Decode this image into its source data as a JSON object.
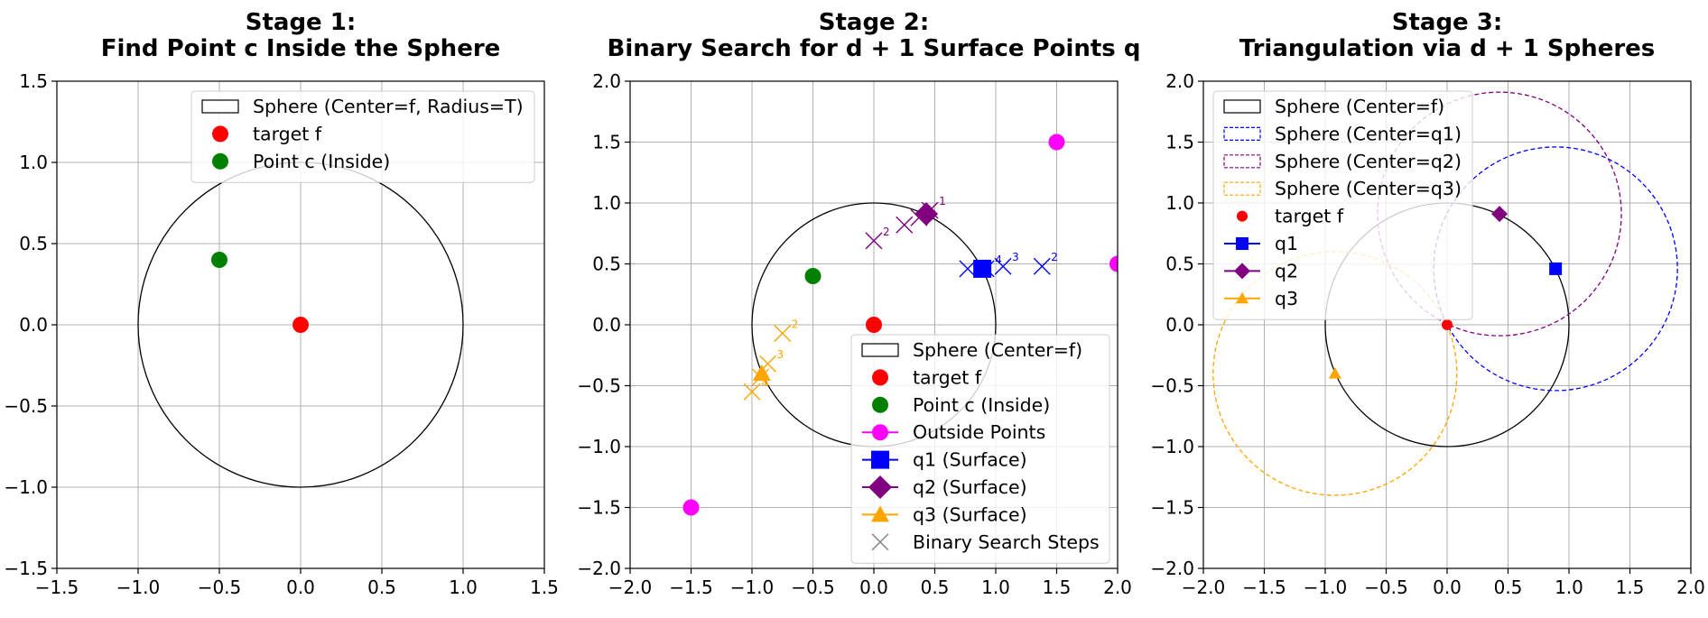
{
  "chart_data": [
    {
      "type": "scatter",
      "title": "Stage 1:\nFind Point c Inside the Sphere",
      "xlim": [
        -1.5,
        1.5
      ],
      "ylim": [
        -1.5,
        1.5
      ],
      "xticks": [
        -1.5,
        -1.0,
        -0.5,
        0.0,
        0.5,
        1.0,
        1.5
      ],
      "yticks": [
        -1.5,
        -1.0,
        -0.5,
        0.0,
        0.5,
        1.0,
        1.5
      ],
      "xtick_labels": [
        "−1.5",
        "−1.0",
        "−0.5",
        "0.0",
        "0.5",
        "1.0",
        "1.5"
      ],
      "ytick_labels": [
        "−1.5",
        "−1.0",
        "−0.5",
        "0.0",
        "0.5",
        "1.0",
        "1.5"
      ],
      "grid": true,
      "legend_position": "upper right",
      "circles": [
        {
          "name": "Sphere (Center=f, Radius=T)",
          "cx": 0,
          "cy": 0,
          "r": 1,
          "color": "#000000",
          "dashed": false
        }
      ],
      "points": [
        {
          "name": "target f",
          "x": 0,
          "y": 0,
          "color": "#ff0000",
          "marker": "circle"
        },
        {
          "name": "Point c (Inside)",
          "x": -0.5,
          "y": 0.4,
          "color": "#008000",
          "marker": "circle"
        }
      ],
      "legend": [
        {
          "label": "Sphere (Center=f, Radius=T)",
          "kind": "patch",
          "color": "#000000"
        },
        {
          "label": "target f",
          "kind": "circle",
          "color": "#ff0000"
        },
        {
          "label": "Point c (Inside)",
          "kind": "circle",
          "color": "#008000"
        }
      ]
    },
    {
      "type": "scatter",
      "title": "Stage 2:\nBinary Search for d + 1 Surface Points q",
      "xlim": [
        -2.0,
        2.0
      ],
      "ylim": [
        -2.0,
        2.0
      ],
      "xticks": [
        -2.0,
        -1.5,
        -1.0,
        -0.5,
        0.0,
        0.5,
        1.0,
        1.5,
        2.0
      ],
      "yticks": [
        -2.0,
        -1.5,
        -1.0,
        -0.5,
        0.0,
        0.5,
        1.0,
        1.5,
        2.0
      ],
      "xtick_labels": [
        "−2.0",
        "−1.5",
        "−1.0",
        "−0.5",
        "0.0",
        "0.5",
        "1.0",
        "1.5",
        "2.0"
      ],
      "ytick_labels": [
        "−2.0",
        "−1.5",
        "−1.0",
        "−0.5",
        "0.0",
        "0.5",
        "1.0",
        "1.5",
        "2.0"
      ],
      "grid": true,
      "legend_position": "lower right",
      "circles": [
        {
          "name": "Sphere (Center=f)",
          "cx": 0,
          "cy": 0,
          "r": 1,
          "color": "#000000",
          "dashed": false
        }
      ],
      "points": [
        {
          "name": "target f",
          "x": 0,
          "y": 0,
          "color": "#ff0000",
          "marker": "circle"
        },
        {
          "name": "Point c (Inside)",
          "x": -0.5,
          "y": 0.4,
          "color": "#008000",
          "marker": "circle"
        },
        {
          "name": "Outside Points",
          "x": 1.5,
          "y": 1.5,
          "color": "#ff00ff",
          "marker": "circle"
        },
        {
          "name": "Outside Points",
          "x": 2.0,
          "y": 0.5,
          "color": "#ff00ff",
          "marker": "circle"
        },
        {
          "name": "Outside Points",
          "x": -1.5,
          "y": -1.5,
          "color": "#ff00ff",
          "marker": "circle"
        },
        {
          "name": "q1 (Surface)",
          "x": 0.89,
          "y": 0.46,
          "color": "#0000ff",
          "marker": "square"
        },
        {
          "name": "q2 (Surface)",
          "x": 0.43,
          "y": 0.91,
          "color": "#800080",
          "marker": "diamond"
        },
        {
          "name": "q3 (Surface)",
          "x": -0.92,
          "y": -0.4,
          "color": "#ffa500",
          "marker": "triangle"
        }
      ],
      "steps": [
        {
          "x": 1.38,
          "y": 0.48,
          "label": "2",
          "color": "#0000ff"
        },
        {
          "x": 1.06,
          "y": 0.48,
          "label": "3",
          "color": "#0000ff"
        },
        {
          "x": 0.77,
          "y": 0.46,
          "label": "",
          "color": "#0000ff"
        },
        {
          "x": 0.92,
          "y": 0.46,
          "label": "4",
          "color": "#0000ff"
        },
        {
          "x": 0.46,
          "y": 0.94,
          "label": "1",
          "color": "#800080"
        },
        {
          "x": 0.0,
          "y": 0.69,
          "label": "2",
          "color": "#800080"
        },
        {
          "x": 0.25,
          "y": 0.82,
          "label": "",
          "color": "#800080"
        },
        {
          "x": 0.37,
          "y": 0.88,
          "label": "",
          "color": "#800080"
        },
        {
          "x": -0.75,
          "y": -0.07,
          "label": "2",
          "color": "#ffa500"
        },
        {
          "x": -0.87,
          "y": -0.32,
          "label": "3",
          "color": "#ffa500"
        },
        {
          "x": -1.0,
          "y": -0.55,
          "label": "4",
          "color": "#ffa500"
        },
        {
          "x": -0.93,
          "y": -0.43,
          "label": "",
          "color": "#ffa500"
        }
      ],
      "legend": [
        {
          "label": "Sphere (Center=f)",
          "kind": "patch",
          "color": "#000000"
        },
        {
          "label": "target f",
          "kind": "circle",
          "color": "#ff0000"
        },
        {
          "label": "Point c (Inside)",
          "kind": "circle",
          "color": "#008000"
        },
        {
          "label": "Outside Points",
          "kind": "circle-line",
          "color": "#ff00ff"
        },
        {
          "label": "q1 (Surface)",
          "kind": "square-line",
          "color": "#0000ff"
        },
        {
          "label": "q2 (Surface)",
          "kind": "diamond-line",
          "color": "#800080"
        },
        {
          "label": "q3 (Surface)",
          "kind": "triangle-line",
          "color": "#ffa500"
        },
        {
          "label": "Binary Search Steps",
          "kind": "x",
          "color": "#808080"
        }
      ]
    },
    {
      "type": "scatter",
      "title": "Stage 3:\nTriangulation via d + 1 Spheres",
      "xlim": [
        -2.0,
        2.0
      ],
      "ylim": [
        -2.0,
        2.0
      ],
      "xticks": [
        -2.0,
        -1.5,
        -1.0,
        -0.5,
        0.0,
        0.5,
        1.0,
        1.5,
        2.0
      ],
      "yticks": [
        -2.0,
        -1.5,
        -1.0,
        -0.5,
        0.0,
        0.5,
        1.0,
        1.5,
        2.0
      ],
      "xtick_labels": [
        "−2.0",
        "−1.5",
        "−1.0",
        "−0.5",
        "0.0",
        "0.5",
        "1.0",
        "1.5",
        "2.0"
      ],
      "ytick_labels": [
        "−2.0",
        "−1.5",
        "−1.0",
        "−0.5",
        "0.0",
        "0.5",
        "1.0",
        "1.5",
        "2.0"
      ],
      "grid": true,
      "legend_position": "upper left",
      "circles": [
        {
          "name": "Sphere (Center=f)",
          "cx": 0,
          "cy": 0,
          "r": 1,
          "color": "#000000",
          "dashed": false
        },
        {
          "name": "Sphere (Center=q1)",
          "cx": 0.89,
          "cy": 0.46,
          "r": 1,
          "color": "#0000ff",
          "dashed": true
        },
        {
          "name": "Sphere (Center=q2)",
          "cx": 0.43,
          "cy": 0.91,
          "r": 1,
          "color": "#800080",
          "dashed": true
        },
        {
          "name": "Sphere (Center=q3)",
          "cx": -0.92,
          "cy": -0.4,
          "r": 1,
          "color": "#ffa500",
          "dashed": true
        }
      ],
      "points": [
        {
          "name": "target f",
          "x": 0,
          "y": 0,
          "color": "#ff0000",
          "marker": "small-circle"
        },
        {
          "name": "q1",
          "x": 0.89,
          "y": 0.46,
          "color": "#0000ff",
          "marker": "square-small"
        },
        {
          "name": "q2",
          "x": 0.43,
          "y": 0.91,
          "color": "#800080",
          "marker": "diamond-small"
        },
        {
          "name": "q3",
          "x": -0.92,
          "y": -0.4,
          "color": "#ffa500",
          "marker": "triangle-small"
        }
      ],
      "legend": [
        {
          "label": "Sphere (Center=f)",
          "kind": "patch",
          "color": "#000000"
        },
        {
          "label": "Sphere (Center=q1)",
          "kind": "patch-dashed",
          "color": "#0000ff"
        },
        {
          "label": "Sphere (Center=q2)",
          "kind": "patch-dashed",
          "color": "#800080"
        },
        {
          "label": "Sphere (Center=q3)",
          "kind": "patch-dashed",
          "color": "#ffa500"
        },
        {
          "label": "target f",
          "kind": "small-circle",
          "color": "#ff0000"
        },
        {
          "label": "q1",
          "kind": "square-line",
          "color": "#0000ff"
        },
        {
          "label": "q2",
          "kind": "diamond-line",
          "color": "#800080"
        },
        {
          "label": "q3",
          "kind": "triangle-line",
          "color": "#ffa500"
        }
      ]
    }
  ]
}
